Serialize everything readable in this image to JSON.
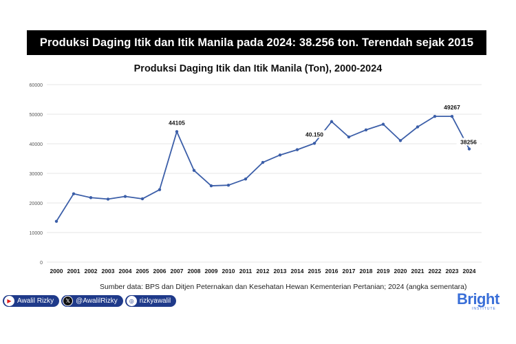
{
  "banner": {
    "text": "Produksi Daging Itik dan Itik Manila pada 2024: 38.256 ton. Terendah sejak 2015"
  },
  "chart_data": {
    "type": "line",
    "title": "Produksi Daging Itik dan Itik Manila (Ton), 2000-2024",
    "xlabel": "",
    "ylabel": "",
    "ylim": [
      0,
      60000
    ],
    "yticks": [
      "0",
      "10000",
      "20000",
      "30000",
      "40000",
      "50000",
      "60000"
    ],
    "grid": true,
    "legend": "none",
    "categories": [
      "2000",
      "2001",
      "2002",
      "2003",
      "2004",
      "2005",
      "2006",
      "2007",
      "2008",
      "2009",
      "2010",
      "2011",
      "2012",
      "2013",
      "2014",
      "2015",
      "2016",
      "2017",
      "2018",
      "2019",
      "2020",
      "2021",
      "2022",
      "2023",
      "2024"
    ],
    "series": [
      {
        "values": [
          13800,
          23100,
          21800,
          21300,
          22200,
          21400,
          24500,
          44105,
          31000,
          25800,
          26000,
          28100,
          33700,
          36200,
          38000,
          40150,
          47500,
          42300,
          44700,
          46600,
          41100,
          45700,
          49267,
          49267,
          38256
        ],
        "color": "#3b5ea8"
      }
    ],
    "annotations": [
      {
        "index": 7,
        "text": "44105"
      },
      {
        "index": 15,
        "text": "40.150"
      },
      {
        "index": 23,
        "text": "49267"
      },
      {
        "index": 24,
        "text": "38256"
      }
    ]
  },
  "source": {
    "text": "Sumber data: BPS dan Ditjen Peternakan dan Kesehatan Hewan Kementerian Pertanian; 2024 (angka sementara)"
  },
  "social": {
    "youtube": "Awalil Rizky",
    "x": "@AwalilRizky",
    "instagram": "rizkyawalil"
  },
  "logo": {
    "name": "Bright",
    "sub": "INSTITUTE"
  },
  "colors": {
    "line": "#3b5ea8",
    "banner_bg": "#000000",
    "pill_bg": "#1f3a8a",
    "logo": "#3a6fd8"
  }
}
